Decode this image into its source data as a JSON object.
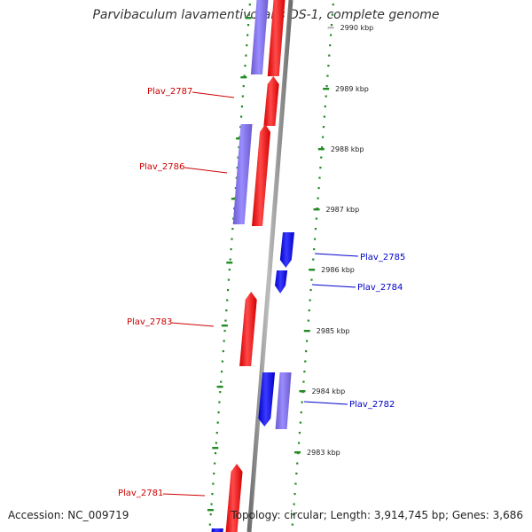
{
  "title": "Parvibaculum lavamentivorans DS-1, complete genome",
  "footer": {
    "accession": "Accession: NC_009719",
    "topology": "Topology: circular; Length: 3,914,745 bp; Genes: 3,686"
  },
  "colors": {
    "forward": "#ff0000",
    "reverse": "#0000ff",
    "forward_pseudo": "#7b68ee",
    "reverse_pseudo": "#7b68ee",
    "tick": "#228b22",
    "backbone": "#808080",
    "forward_label": "#cc0000",
    "reverse_label": "#0000cc"
  },
  "ruler": [
    {
      "label": "2990 kbp"
    },
    {
      "label": "2989 kbp"
    },
    {
      "label": "2988 kbp"
    },
    {
      "label": "2987 kbp"
    },
    {
      "label": "2986 kbp"
    },
    {
      "label": "2985 kbp"
    },
    {
      "label": "2984 kbp"
    },
    {
      "label": "2983 kbp"
    }
  ],
  "gene_labels": [
    {
      "name": "Plav_2787",
      "strand": "forward"
    },
    {
      "name": "Plav_2786",
      "strand": "forward"
    },
    {
      "name": "Plav_2785",
      "strand": "reverse"
    },
    {
      "name": "Plav_2784",
      "strand": "reverse"
    },
    {
      "name": "Plav_2783",
      "strand": "forward"
    },
    {
      "name": "Plav_2782",
      "strand": "reverse"
    },
    {
      "name": "Plav_2781",
      "strand": "forward"
    }
  ]
}
